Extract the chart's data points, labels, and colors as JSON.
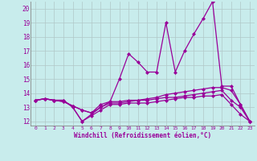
{
  "xlabel": "Windchill (Refroidissement éolien,°C)",
  "bg_color": "#c8ecec",
  "line_color": "#990099",
  "grid_color": "#b0c8c8",
  "xlim": [
    -0.5,
    23.5
  ],
  "ylim": [
    11.7,
    20.5
  ],
  "yticks": [
    12,
    13,
    14,
    15,
    16,
    17,
    18,
    19,
    20
  ],
  "xticks": [
    0,
    1,
    2,
    3,
    4,
    5,
    6,
    7,
    8,
    9,
    10,
    11,
    12,
    13,
    14,
    15,
    16,
    17,
    18,
    19,
    20,
    21,
    22,
    23
  ],
  "series": [
    {
      "x": [
        0,
        1,
        2,
        3,
        4,
        5,
        6,
        7,
        8,
        9,
        10,
        11,
        12,
        13,
        14,
        15,
        16,
        17,
        18,
        19,
        20,
        21,
        22,
        23
      ],
      "y": [
        13.5,
        13.6,
        13.5,
        13.5,
        13.0,
        12.0,
        12.5,
        13.0,
        13.4,
        15.0,
        16.8,
        16.2,
        15.5,
        15.5,
        19.0,
        15.5,
        17.0,
        18.2,
        19.3,
        20.5,
        14.5,
        14.5,
        13.2,
        12.0
      ]
    },
    {
      "x": [
        0,
        1,
        2,
        3,
        4,
        5,
        6,
        7,
        8,
        9,
        10,
        11,
        12,
        13,
        14,
        15,
        16,
        17,
        18,
        19,
        20,
        21,
        22,
        23
      ],
      "y": [
        13.5,
        13.6,
        13.5,
        13.4,
        13.1,
        12.8,
        12.6,
        13.2,
        13.4,
        13.4,
        13.5,
        13.5,
        13.6,
        13.7,
        13.9,
        14.0,
        14.1,
        14.2,
        14.3,
        14.4,
        14.4,
        14.2,
        13.2,
        12.0
      ]
    },
    {
      "x": [
        0,
        1,
        2,
        3,
        4,
        5,
        6,
        7,
        8,
        9,
        10,
        11,
        12,
        13,
        14,
        15,
        16,
        17,
        18,
        19,
        20,
        21,
        22,
        23
      ],
      "y": [
        13.5,
        13.6,
        13.5,
        13.4,
        13.1,
        12.8,
        12.6,
        13.0,
        13.3,
        13.3,
        13.4,
        13.5,
        13.5,
        13.6,
        13.7,
        13.7,
        13.8,
        13.9,
        14.0,
        14.1,
        14.2,
        13.5,
        13.0,
        12.0
      ]
    },
    {
      "x": [
        0,
        1,
        2,
        3,
        4,
        5,
        6,
        7,
        8,
        9,
        10,
        11,
        12,
        13,
        14,
        15,
        16,
        17,
        18,
        19,
        20,
        21,
        22,
        23
      ],
      "y": [
        13.5,
        13.6,
        13.5,
        13.5,
        13.0,
        12.0,
        12.4,
        12.8,
        13.2,
        13.2,
        13.3,
        13.3,
        13.3,
        13.4,
        13.5,
        13.6,
        13.7,
        13.7,
        13.8,
        13.8,
        13.9,
        13.2,
        12.5,
        12.0
      ]
    }
  ]
}
